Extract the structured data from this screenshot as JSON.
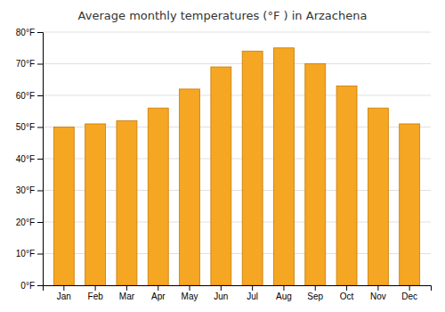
{
  "chart_data": {
    "type": "bar",
    "title": "Average monthly temperatures (°F ) in Arzachena",
    "categories": [
      "Jan",
      "Feb",
      "Mar",
      "Apr",
      "May",
      "Jun",
      "Jul",
      "Aug",
      "Sep",
      "Oct",
      "Nov",
      "Dec"
    ],
    "values": [
      50,
      51,
      52,
      56,
      62,
      69,
      74,
      75,
      70,
      63,
      56,
      51
    ],
    "color": "#F5A623",
    "ylim": [
      0,
      80
    ],
    "yticks": [
      {
        "value": 0,
        "label": "0°F"
      },
      {
        "value": 10,
        "label": "10°F"
      },
      {
        "value": 20,
        "label": "20°F"
      },
      {
        "value": 30,
        "label": "30°F"
      },
      {
        "value": 40,
        "label": "40°F"
      },
      {
        "value": 50,
        "label": "50°F"
      },
      {
        "value": 60,
        "label": "60°F"
      },
      {
        "value": 70,
        "label": "70°F"
      },
      {
        "value": 80,
        "label": "80°F"
      }
    ],
    "grid": true
  }
}
